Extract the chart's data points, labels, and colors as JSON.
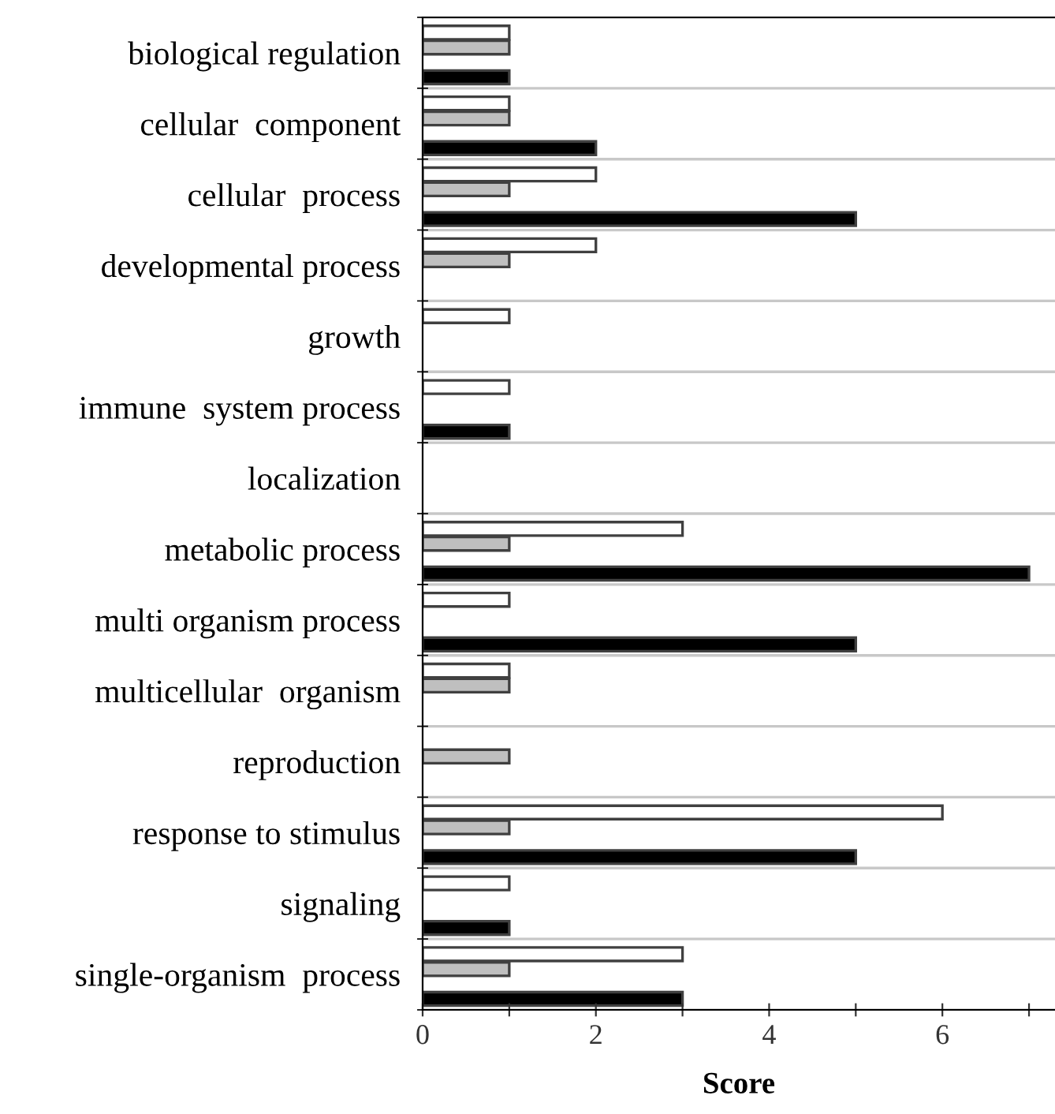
{
  "chart_data": {
    "type": "bar",
    "orientation": "horizontal",
    "xlabel": "Score",
    "categories": [
      "biological regulation",
      "cellular  component",
      "cellular  process",
      "developmental process",
      "growth",
      "immune  system process",
      "localization",
      "metabolic process",
      "multi organism process",
      "multicellular  organism",
      "reproduction",
      "response to stimulus",
      "signaling",
      "single-organism  process"
    ],
    "series": [
      {
        "color": "#ffffff",
        "values": [
          1,
          1,
          2,
          2,
          1,
          1,
          null,
          3,
          1,
          1,
          null,
          6,
          1,
          3
        ]
      },
      {
        "color": "#bfbfbf",
        "values": [
          1,
          1,
          1,
          1,
          null,
          null,
          null,
          1,
          null,
          1,
          1,
          1,
          null,
          1
        ]
      },
      {
        "color": "#000000",
        "values": [
          1,
          2,
          5,
          null,
          null,
          1,
          null,
          7,
          5,
          null,
          null,
          5,
          1,
          3
        ]
      }
    ],
    "xlim": [
      0,
      7.3
    ],
    "xticks": [
      0,
      {
        "value": 1,
        "label": null
      },
      2,
      {
        "value": 3,
        "label": null
      },
      4,
      {
        "value": 5,
        "label": null
      },
      6,
      {
        "value": 7,
        "label": null
      }
    ],
    "grid": "y",
    "legend": false
  }
}
